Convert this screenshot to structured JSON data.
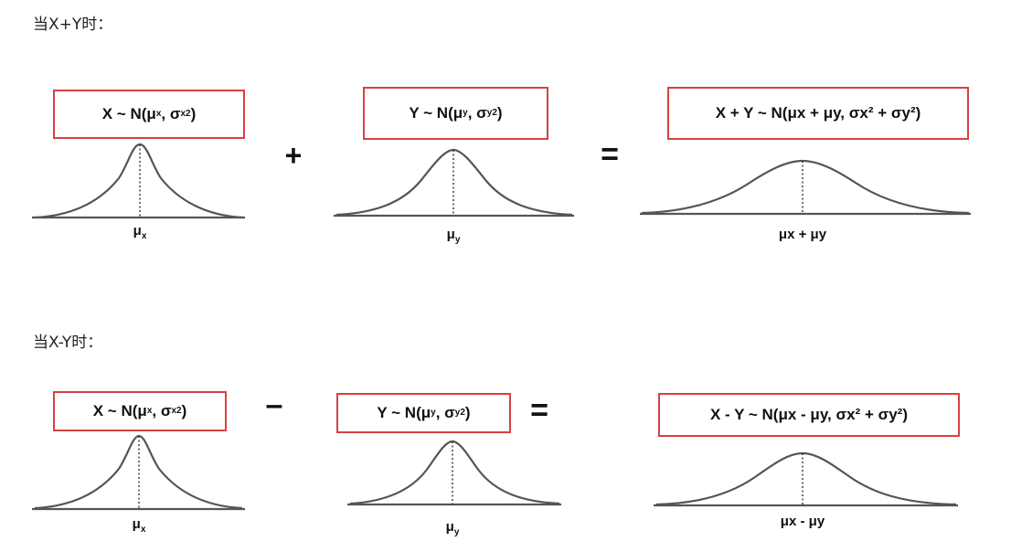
{
  "section_sum": {
    "heading": "当X+Y时：",
    "formula_x": {
      "lead": "X ~ N(μ",
      "sub1": "x",
      "mid": ", σ",
      "sub2": "x",
      "sup": "2",
      "tail": ")"
    },
    "formula_y": {
      "lead": "Y ~ N(μ",
      "sub1": "y",
      "mid": ", σ",
      "sub2": "y",
      "sup": "2",
      "tail": ")"
    },
    "formula_result": "X + Y ~ N(μx + μy, σx² + σy²)",
    "op_plus": "+",
    "op_equals": "=",
    "label_x": "x",
    "label_y": "y",
    "label_result": "x + μy"
  },
  "section_diff": {
    "heading": "当X-Y时：",
    "formula_x": {
      "lead": "X ~ N(μ",
      "sub1": "x",
      "mid": ", σ",
      "sub2": "x",
      "sup": "2",
      "tail": ")"
    },
    "formula_y": {
      "lead": "Y ~ N(μ",
      "sub1": "y",
      "mid": ", σ",
      "sub2": "y",
      "sup": "2",
      "tail": ")"
    },
    "formula_result": "X - Y ~ N(μx - μy, σx² + σy²)",
    "op_minus": "–",
    "op_equals": "=",
    "label_x": "x",
    "label_y": "y",
    "label_result": "x - μy"
  }
}
